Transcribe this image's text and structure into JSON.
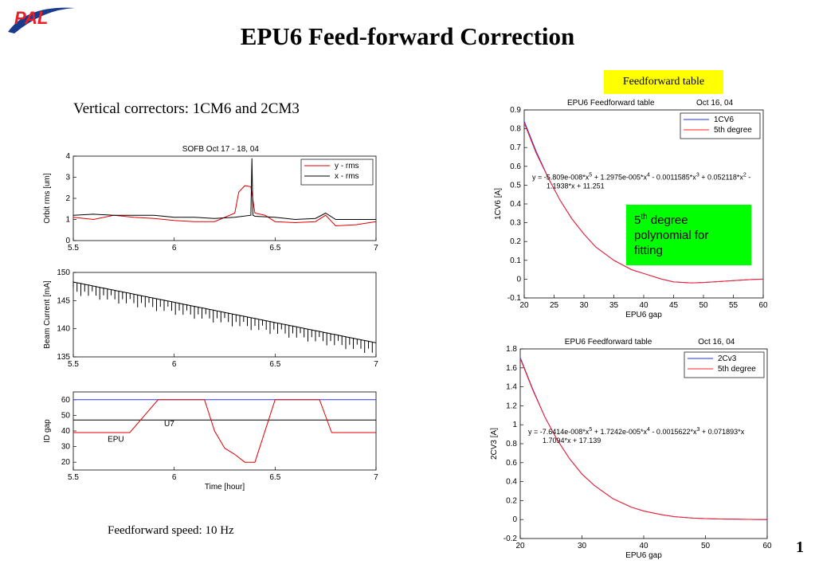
{
  "slide": {
    "title": "EPU6 Feed-forward Correction",
    "logo_text": "PAL",
    "vertical_correctors": "Vertical correctors:  1CM6 and 2CM3",
    "ff_table_label": "Feedforward table",
    "feedforward_speed": "Feedforward speed: 10 Hz",
    "note_line1_base": "5",
    "note_line1_sup": "th",
    "note_line1_rest": " degree",
    "note_line2": "polynomial for",
    "note_line3": "fitting",
    "page_number": "1",
    "colors": {
      "title_accent": "#000000",
      "note_bg": "#00ff00",
      "label_bg": "#ffff00",
      "logo_red": "#e8202a",
      "logo_blue": "#1a3a8c"
    }
  },
  "chart_data": [
    {
      "type": "line",
      "title": "SOFB   Oct 17 - 18, 04",
      "xlabel": "",
      "ylabel": "Orbit rms  [um]",
      "xlim": [
        5.5,
        7
      ],
      "ylim": [
        0,
        4
      ],
      "xticks": [
        "5.5",
        "6",
        "6.5",
        "7"
      ],
      "yticks": [
        "0",
        "1",
        "2",
        "3",
        "4"
      ],
      "legend": "top-right",
      "series": [
        {
          "name": "y - rms",
          "color": "#e00000",
          "x": [
            5.5,
            5.6,
            5.7,
            5.8,
            5.9,
            6.0,
            6.1,
            6.2,
            6.3,
            6.32,
            6.35,
            6.38,
            6.4,
            6.45,
            6.5,
            6.6,
            6.7,
            6.75,
            6.8,
            6.9,
            7.0
          ],
          "y": [
            1.1,
            1.0,
            1.2,
            1.1,
            1.05,
            0.95,
            0.9,
            0.9,
            1.3,
            2.3,
            2.6,
            2.55,
            1.3,
            1.2,
            0.9,
            0.85,
            0.9,
            1.2,
            0.7,
            0.75,
            0.9
          ]
        },
        {
          "name": "x - rms",
          "color": "#000000",
          "x": [
            5.5,
            5.6,
            5.7,
            5.8,
            5.9,
            6.0,
            6.1,
            6.2,
            6.3,
            6.38,
            6.385,
            6.39,
            6.4,
            6.5,
            6.6,
            6.7,
            6.75,
            6.8,
            6.9,
            7.0
          ],
          "y": [
            1.2,
            1.25,
            1.2,
            1.2,
            1.2,
            1.1,
            1.1,
            1.05,
            1.1,
            1.2,
            3.9,
            1.2,
            1.15,
            1.1,
            1.0,
            1.05,
            1.3,
            1.0,
            1.0,
            1.0
          ]
        }
      ]
    },
    {
      "type": "line",
      "title": "",
      "xlabel": "",
      "ylabel": "Beam Current  [mA]",
      "xlim": [
        5.5,
        7
      ],
      "ylim": [
        135,
        150
      ],
      "xticks": [
        "5.5",
        "6",
        "6.5",
        "7"
      ],
      "yticks": [
        "135",
        "140",
        "145",
        "150"
      ],
      "series": [
        {
          "name": "",
          "color": "#000000",
          "x": [
            5.5,
            7.0
          ],
          "y": [
            148.3,
            137.5
          ],
          "dip": 2.5
        }
      ]
    },
    {
      "type": "line",
      "title": "",
      "xlabel": "Time  [hour]",
      "ylabel": "ID gap",
      "xlim": [
        5.5,
        7
      ],
      "ylim": [
        15,
        65
      ],
      "xticks": [
        "5.5",
        "6",
        "6.5",
        "7"
      ],
      "yticks": [
        "20",
        "30",
        "40",
        "50",
        "60"
      ],
      "annotations": [
        "U7",
        "EPU"
      ],
      "series": [
        {
          "name": "U7",
          "color": "#000000",
          "x": [
            5.5,
            7.0
          ],
          "y": [
            47,
            47
          ]
        },
        {
          "name": "",
          "color": "#3030ff",
          "x": [
            5.5,
            7.0
          ],
          "y": [
            60,
            60
          ]
        },
        {
          "name": "EPU",
          "color": "#e00000",
          "x": [
            5.5,
            5.78,
            5.92,
            6.15,
            6.2,
            6.25,
            6.3,
            6.35,
            6.4,
            6.5,
            6.72,
            6.78,
            7.0
          ],
          "y": [
            39,
            39,
            60,
            60,
            40,
            29,
            25,
            20,
            20,
            60,
            60,
            39,
            39
          ]
        }
      ]
    },
    {
      "type": "line",
      "title": "EPU6 Feedforward table",
      "date": "Oct 16, 04",
      "xlabel": "EPU6 gap",
      "ylabel": "1CV6  [A]",
      "xlim": [
        20,
        60
      ],
      "ylim": [
        -0.1,
        0.9
      ],
      "xticks": [
        "20",
        "25",
        "30",
        "35",
        "40",
        "45",
        "50",
        "55",
        "60"
      ],
      "yticks": [
        "-0.1",
        "0",
        "0.1",
        "0.2",
        "0.3",
        "0.4",
        "0.5",
        "0.6",
        "0.7",
        "0.8",
        "0.9"
      ],
      "legend": "top-right",
      "equation_line1": "y = -5.809e-008*x^5 + 1.2975e-005*x^4 - 0.0011585*x^3 + 0.052118*x^2 -",
      "equation_line2": "1.1938*x + 11.251",
      "series": [
        {
          "name": "1CV6",
          "color": "#2030ff",
          "x": [
            20,
            22,
            24,
            26,
            28,
            30,
            32,
            35,
            38,
            40,
            43,
            45,
            48,
            50,
            53,
            55,
            58,
            60
          ],
          "y": [
            0.84,
            0.68,
            0.54,
            0.42,
            0.32,
            0.24,
            0.17,
            0.1,
            0.05,
            0.03,
            0.0,
            -0.015,
            -0.02,
            -0.018,
            -0.012,
            -0.008,
            -0.002,
            0.0
          ]
        },
        {
          "name": "5th degree",
          "color": "#ff2020",
          "x": [
            20,
            22,
            24,
            26,
            28,
            30,
            32,
            35,
            38,
            40,
            43,
            45,
            48,
            50,
            53,
            55,
            58,
            60
          ],
          "y": [
            0.83,
            0.67,
            0.54,
            0.42,
            0.32,
            0.24,
            0.17,
            0.1,
            0.05,
            0.03,
            0.0,
            -0.015,
            -0.02,
            -0.018,
            -0.012,
            -0.008,
            -0.002,
            0.0
          ]
        }
      ]
    },
    {
      "type": "line",
      "title": "EPU6 Feedforward table",
      "date": "Oct 16, 04",
      "xlabel": "EPU6 gap",
      "ylabel": "2CV3  [A]",
      "xlim": [
        20,
        60
      ],
      "ylim": [
        -0.2,
        1.8
      ],
      "xticks": [
        "20",
        "30",
        "40",
        "50",
        "60"
      ],
      "yticks": [
        "-0.2",
        "0",
        "0.2",
        "0.4",
        "0.6",
        "0.8",
        "1",
        "1.2",
        "1.4",
        "1.6",
        "1.8"
      ],
      "legend": "top-right",
      "equation_line1": "y = -7.6414e-008*x^5 + 1.7242e-005*x^4 - 0.0015622*x^3 + 0.071893*x",
      "equation_line2": "1.7094*x + 17.139",
      "series": [
        {
          "name": "2Cv3",
          "color": "#2030ff",
          "x": [
            20,
            22,
            24,
            26,
            28,
            30,
            32,
            35,
            38,
            40,
            43,
            45,
            48,
            50,
            53,
            55,
            58,
            60
          ],
          "y": [
            1.71,
            1.38,
            1.08,
            0.84,
            0.64,
            0.48,
            0.36,
            0.22,
            0.13,
            0.09,
            0.05,
            0.03,
            0.015,
            0.01,
            0.005,
            0.003,
            0.001,
            0.0
          ]
        },
        {
          "name": "5th degree",
          "color": "#ff2020",
          "x": [
            20,
            22,
            24,
            26,
            28,
            30,
            32,
            35,
            38,
            40,
            43,
            45,
            48,
            50,
            53,
            55,
            58,
            60
          ],
          "y": [
            1.7,
            1.37,
            1.08,
            0.84,
            0.64,
            0.48,
            0.36,
            0.22,
            0.13,
            0.09,
            0.05,
            0.03,
            0.015,
            0.01,
            0.005,
            0.003,
            0.001,
            0.0
          ]
        }
      ]
    }
  ]
}
